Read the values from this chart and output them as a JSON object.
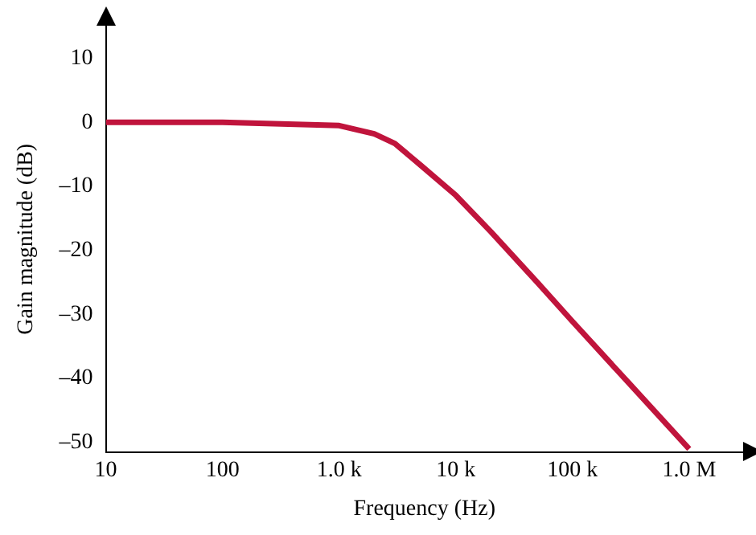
{
  "chart_data": {
    "type": "line",
    "xlabel": "Frequency (Hz)",
    "ylabel": "Gain magnitude (dB)",
    "x": [
      10,
      100,
      1000,
      2000,
      3000,
      5000,
      10000,
      20000,
      50000,
      100000,
      300000,
      1000000
    ],
    "series": [
      {
        "color": "#c0143c",
        "values": [
          0,
          0,
          -0.5,
          -1.8,
          -3.3,
          -6.7,
          -11.4,
          -17.1,
          -25,
          -31.1,
          -40.6,
          -51
        ]
      }
    ],
    "log": "x",
    "xlim": [
      10,
      2900000
    ],
    "ylim": [
      -51.5,
      15
    ],
    "xticks": [
      10,
      100,
      {
        "value": 1000,
        "label": "1.0 k"
      },
      {
        "value": 10000,
        "label": "10 k"
      },
      {
        "value": 100000,
        "label": "100 k"
      },
      {
        "value": 1000000,
        "label": "1.0 M"
      }
    ],
    "yticks": [
      10,
      0,
      {
        "value": -10,
        "label": "–10"
      },
      {
        "value": -20,
        "label": "–20"
      },
      {
        "value": -30,
        "label": "–30"
      },
      {
        "value": -40,
        "label": "–40"
      },
      {
        "value": -50,
        "label": "–50"
      }
    ],
    "grid": false,
    "legend": false,
    "marker": "none",
    "line_style": "solid"
  }
}
